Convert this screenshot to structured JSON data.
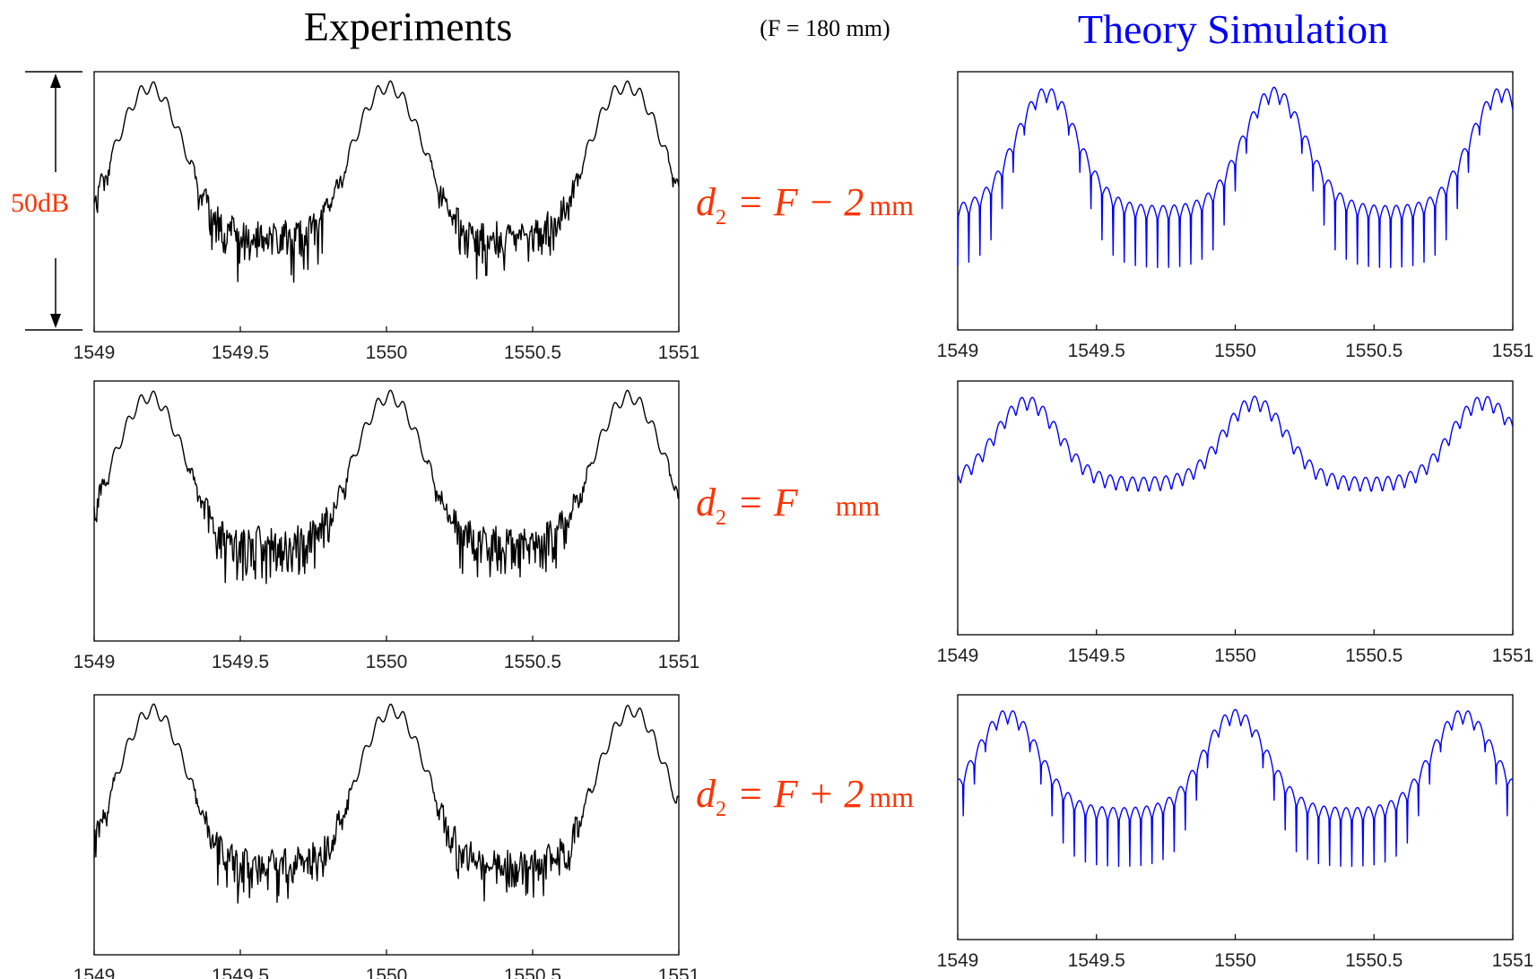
{
  "header": {
    "left_title": "Experiments",
    "center_note": "(F = 180 mm)",
    "right_title": "Theory Simulation"
  },
  "colors": {
    "experiment": "#000000",
    "simulation": "#0000ff",
    "annotation": "#ff3300",
    "right_title": "#0000ff"
  },
  "scale_annotation": "50dB",
  "rows": [
    {
      "d_symbol": "d",
      "d_sub": "2",
      "expr": "= F − 2",
      "unit": "mm"
    },
    {
      "d_symbol": "d",
      "d_sub": "2",
      "expr": "= F",
      "unit": "mm"
    },
    {
      "d_symbol": "d",
      "d_sub": "2",
      "expr": "= F + 2",
      "unit": "mm"
    }
  ],
  "chart_data": [
    {
      "type": "line",
      "panel": "experiment-row-1",
      "series": [
        {
          "values": []
        }
      ],
      "x_ticks": [
        "1549",
        "1549.5",
        "1550",
        "1550.5",
        "1551"
      ],
      "xlim": [
        1549,
        1551
      ],
      "grid": false,
      "peaks": [
        1549.19,
        1550.0,
        1550.81
      ],
      "trough_floor": 0.72
    },
    {
      "type": "line",
      "panel": "experiment-row-2",
      "series": [
        {
          "values": []
        }
      ],
      "x_ticks": [
        "1549",
        "1549.5",
        "1550",
        "1550.5",
        "1551"
      ],
      "xlim": [
        1549,
        1551
      ],
      "grid": false,
      "peaks": [
        1549.19,
        1550.01,
        1550.83
      ],
      "trough_floor": 0.7
    },
    {
      "type": "line",
      "panel": "experiment-row-3",
      "series": [
        {
          "values": []
        }
      ],
      "x_ticks": [
        "1549",
        "1549.5",
        "1550",
        "1550.5",
        "1551"
      ],
      "xlim": [
        1549,
        1551
      ],
      "grid": false,
      "peaks": [
        1549.2,
        1550.02,
        1550.84
      ],
      "trough_floor": 0.74
    },
    {
      "type": "line",
      "panel": "simulation-row-1",
      "series": [
        {
          "values": []
        }
      ],
      "x_ticks": [
        "1549",
        "1549.5",
        "1550",
        "1550.5",
        "1551"
      ],
      "xlim": [
        1549,
        1551
      ],
      "grid": false,
      "peaks": [
        1549.32,
        1550.14,
        1550.96
      ],
      "trough_floor": 0.62
    },
    {
      "type": "line",
      "panel": "simulation-row-2",
      "series": [
        {
          "values": []
        }
      ],
      "x_ticks": [
        "1549",
        "1549.5",
        "1550",
        "1550.5",
        "1551"
      ],
      "xlim": [
        1549,
        1551
      ],
      "grid": false,
      "peaks": [
        1549.25,
        1550.07,
        1550.9
      ],
      "trough_floor": 0.45
    },
    {
      "type": "line",
      "panel": "simulation-row-3",
      "series": [
        {
          "values": []
        }
      ],
      "x_ticks": [
        "1549",
        "1549.5",
        "1550",
        "1550.5",
        "1551"
      ],
      "xlim": [
        1549,
        1551
      ],
      "grid": false,
      "peaks": [
        1549.18,
        1550.0,
        1550.82
      ],
      "trough_floor": 0.55
    }
  ]
}
